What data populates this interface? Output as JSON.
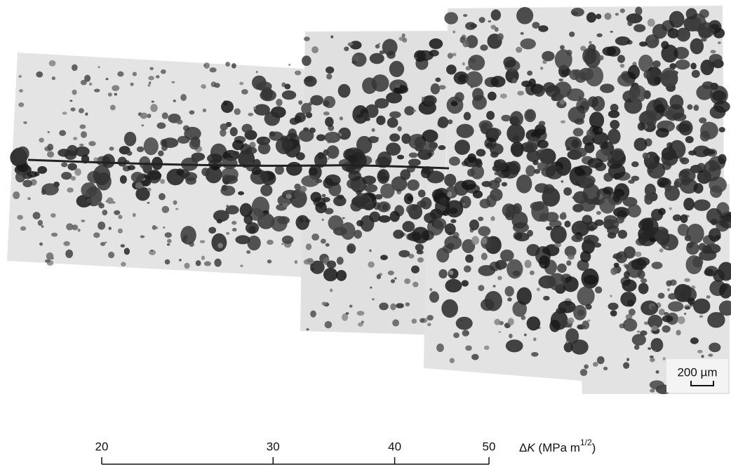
{
  "micrograph": {
    "scale_bar": {
      "label": "200 µm"
    }
  },
  "delta_k_axis": {
    "scale": "log",
    "lim": [
      20,
      50
    ],
    "ticks": [
      20,
      30,
      40,
      50
    ],
    "label_parts": [
      "Δ",
      "K",
      " (MPa m",
      "1/2",
      ")"
    ]
  }
}
